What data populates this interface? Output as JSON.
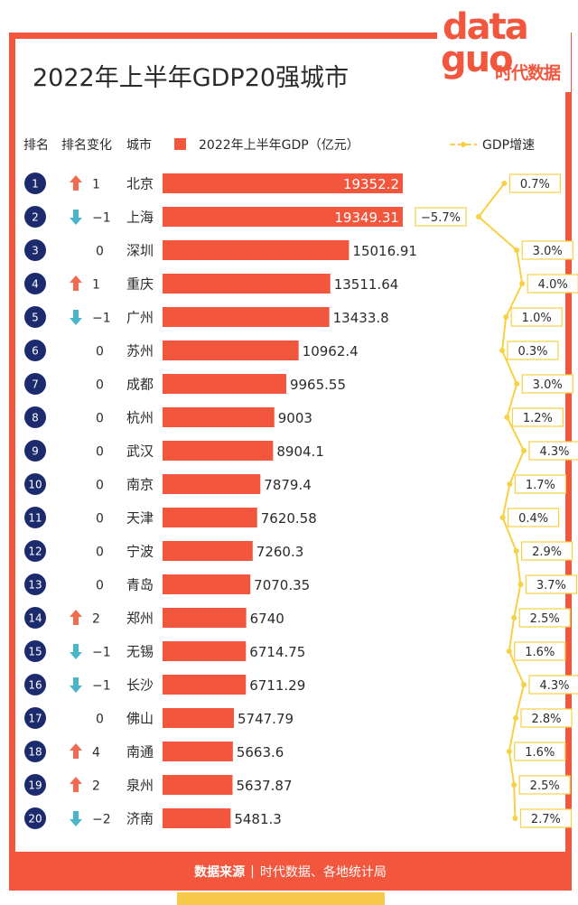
{
  "title": "2022年上半年GDP20强城市",
  "logo": {
    "word1": "data",
    "word2": "guo",
    "sub": "时代数据"
  },
  "header": {
    "rank": "排名",
    "rank_change": "排名变化",
    "city": "城市",
    "bar_legend": "2022年上半年GDP（亿元）",
    "line_legend": "GDP增速"
  },
  "colors": {
    "accent": "#f2563d",
    "badge": "#1c2b6e",
    "up": "#f26a4f",
    "down": "#49b5c8",
    "growth": "#f7d043"
  },
  "chart_data": {
    "type": "bar",
    "categories": [
      "北京",
      "上海",
      "深圳",
      "重庆",
      "广州",
      "苏州",
      "成都",
      "杭州",
      "武汉",
      "南京",
      "天津",
      "宁波",
      "青岛",
      "郑州",
      "无锡",
      "长沙",
      "佛山",
      "南通",
      "泉州",
      "济南"
    ],
    "ranks": [
      "1",
      "2",
      "3",
      "4",
      "5",
      "6",
      "7",
      "8",
      "9",
      "10",
      "11",
      "12",
      "13",
      "14",
      "15",
      "16",
      "17",
      "18",
      "19",
      "20"
    ],
    "rank_change": [
      1,
      -1,
      0,
      1,
      -1,
      0,
      0,
      0,
      0,
      0,
      0,
      0,
      0,
      2,
      -1,
      -1,
      0,
      4,
      2,
      -2
    ],
    "rank_change_labels": [
      "1",
      "−1",
      "0",
      "1",
      "−1",
      "0",
      "0",
      "0",
      "0",
      "0",
      "0",
      "0",
      "0",
      "2",
      "−1",
      "−1",
      "0",
      "4",
      "2",
      "−2"
    ],
    "series": [
      {
        "name": "2022年上半年GDP（亿元）",
        "values": [
          19352.2,
          19349.31,
          15016.91,
          13511.64,
          13433.8,
          10962.4,
          9965.55,
          9003,
          8904.1,
          7879.4,
          7620.58,
          7260.3,
          7070.35,
          6740,
          6714.75,
          6711.29,
          5747.79,
          5663.6,
          5637.87,
          5481.3
        ],
        "labels": [
          "19352.2",
          "19349.31",
          "15016.91",
          "13511.64",
          "13433.8",
          "10962.4",
          "9965.55",
          "9003",
          "8904.1",
          "7879.4",
          "7620.58",
          "7260.3",
          "7070.35",
          "6740",
          "6714.75",
          "6711.29",
          "5747.79",
          "5663.6",
          "5637.87",
          "5481.3"
        ]
      },
      {
        "name": "GDP增速",
        "values": [
          0.7,
          -5.7,
          3.0,
          4.0,
          1.0,
          0.3,
          3.0,
          1.2,
          4.3,
          1.7,
          0.4,
          2.9,
          3.7,
          2.5,
          1.6,
          4.3,
          2.8,
          1.6,
          2.5,
          2.7
        ],
        "labels": [
          "0.7%",
          "−5.7%",
          "3.0%",
          "4.0%",
          "1.0%",
          "0.3%",
          "3.0%",
          "1.2%",
          "4.3%",
          "1.7%",
          "0.4%",
          "2.9%",
          "3.7%",
          "2.5%",
          "1.6%",
          "4.3%",
          "2.8%",
          "1.6%",
          "2.5%",
          "2.7%"
        ]
      }
    ]
  },
  "footer": {
    "source_label": "数据来源",
    "source_text": "时代数据、各地统计局"
  }
}
